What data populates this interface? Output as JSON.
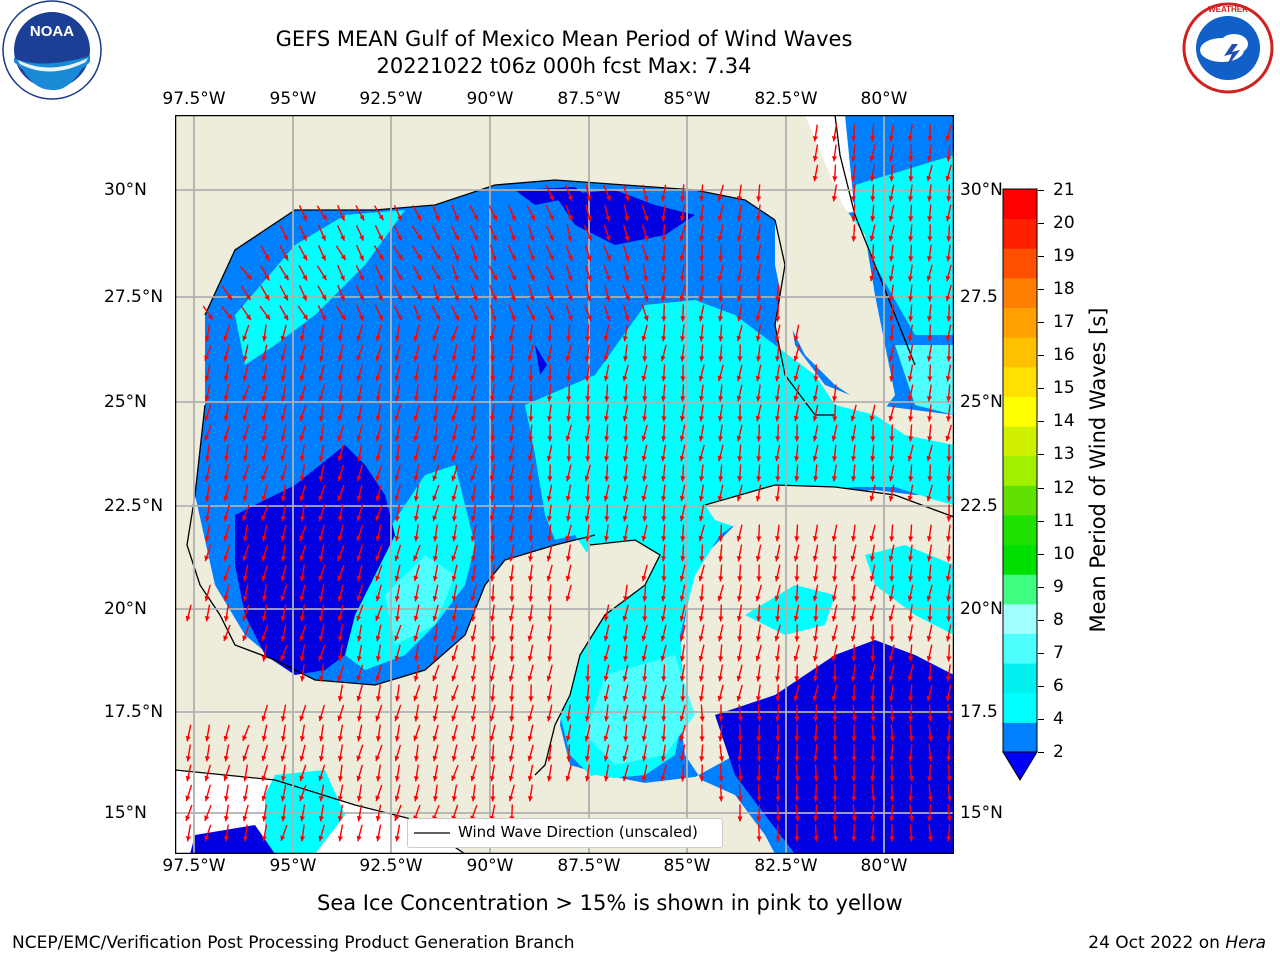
{
  "header": {
    "title_line1": "GEFS MEAN Gulf of Mexico Mean Period of Wind Waves",
    "title_line2": "20221022 t06z 000h fcst   Max: 7.34"
  },
  "logos": {
    "noaa_text": "NOAA",
    "noaa_ring_text": "NATIONAL OCEANIC AND ATMOSPHERIC ADMINISTRATION · U.S. DEPARTMENT OF COMMERCE",
    "nws_ring_text": "NATIONAL WEATHER SERVICE"
  },
  "map": {
    "lon_ticks": [
      "97.5°W",
      "95°W",
      "92.5°W",
      "90°W",
      "87.5°W",
      "85°W",
      "82.5°W",
      "80°W"
    ],
    "lat_ticks_left": [
      "30°N",
      "27.5°N",
      "25°N",
      "22.5°N",
      "20°N",
      "17.5°N",
      "15°N"
    ],
    "lat_ticks_right": [
      "30°N",
      "27.5",
      "25°N",
      "22.5",
      "20°N",
      "17.5",
      "15°N"
    ],
    "legend_label": "Wind Wave Direction (unscaled)",
    "colors": {
      "land": "#eeecdb",
      "ocean_2_4": "#0080ff",
      "ocean_lt_2": "#0000e0",
      "ocean_4_6": "#00ffff",
      "ocean_6_8": "#4dffff",
      "arrow": "#ff0000",
      "grid": "#b0b0b0"
    }
  },
  "colorbar": {
    "label": "Mean Period of Wind Waves [s]",
    "ticks": [
      "2",
      "4",
      "6",
      "7",
      "8",
      "9",
      "10",
      "11",
      "12",
      "13",
      "14",
      "15",
      "16",
      "17",
      "18",
      "19",
      "20",
      "21"
    ],
    "colors": [
      "#0080ff",
      "#00ffff",
      "#00f0f0",
      "#4dffff",
      "#a0ffff",
      "#40ff80",
      "#00e000",
      "#20e000",
      "#60e000",
      "#a0f000",
      "#d0f000",
      "#ffff00",
      "#ffe000",
      "#ffc000",
      "#ffa000",
      "#ff8000",
      "#ff5000",
      "#ff2000",
      "#ff0000"
    ],
    "extend_color": "#0000ff"
  },
  "notes": {
    "sea_ice": "Sea Ice Concentration > 15% is shown in pink to yellow",
    "branch": "NCEP/EMC/Verification Post Processing Product Generation Branch",
    "date_prefix": "24 Oct 2022 on ",
    "machine": "Hera"
  }
}
